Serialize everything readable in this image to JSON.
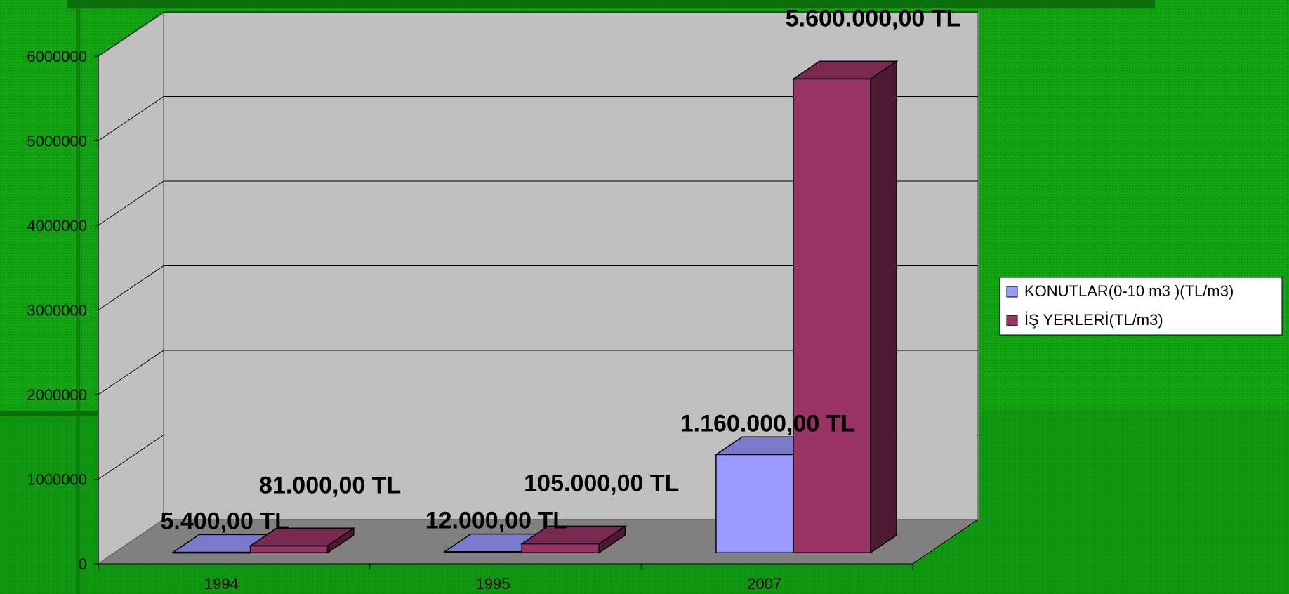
{
  "chart_data": {
    "type": "bar",
    "categories": [
      "1994",
      "1995",
      "2007"
    ],
    "series": [
      {
        "name": "KONUTLAR(0-10 m3 )(TL/m3)",
        "values": [
          5400,
          12000,
          1160000
        ],
        "labels": [
          "5.400,00 TL",
          "12.000,00 TL",
          "1.160.000,00 TL"
        ],
        "color": "#9999FF"
      },
      {
        "name": "İŞ YERLERİ(TL/m3)",
        "values": [
          81000,
          105000,
          5600000
        ],
        "labels": [
          "81.000,00 TL",
          "105.000,00 TL",
          "5.600.000,00 TL"
        ],
        "color": "#993366"
      }
    ],
    "yticks": [
      "0",
      "1000000",
      "2000000",
      "3000000",
      "4000000",
      "5000000",
      "6000000"
    ],
    "ylim": [
      0,
      6000000
    ],
    "grid": true,
    "legend": "right"
  },
  "colors": {
    "background": "#14a014",
    "wall": "#c0c0c0",
    "floor": "#808080"
  }
}
